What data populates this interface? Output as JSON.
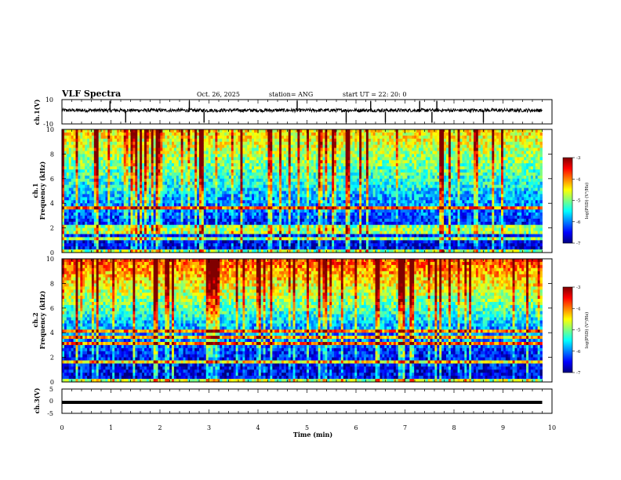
{
  "header": {
    "title": "VLF Spectra",
    "date": "Oct. 26, 2025",
    "station": "station= ANG",
    "start_ut": "start UT =   22: 20: 0"
  },
  "chart_data": [
    {
      "type": "line",
      "panel": "ch1-waveform",
      "ylabel": "ch.1(V)",
      "ylim": [
        -10,
        10
      ],
      "ytick_labels": [
        "10",
        "-10"
      ],
      "baseline": 0,
      "description_spikes_min": [
        0.98,
        1.3,
        2.6,
        2.9,
        4.8,
        5.8,
        6.3,
        6.6,
        7.3,
        7.55,
        7.65,
        8.6
      ],
      "xlim": [
        0,
        10
      ]
    },
    {
      "type": "heatmap",
      "panel": "ch1-spectrogram",
      "ylabel": "ch.1",
      "ylabel2": "Frequency (kHz)",
      "ylim": [
        0,
        10
      ],
      "ytick_labels": [
        "0",
        "2",
        "4",
        "6",
        "8",
        "10"
      ],
      "xlim": [
        0,
        10
      ],
      "data_end_min": 9.8,
      "colorbar": {
        "range": [
          -7,
          -3
        ],
        "tick_labels": [
          "-3",
          "-4",
          "-5",
          "-6",
          "-7"
        ],
        "label": "log(PSD) (V²/Hz)"
      }
    },
    {
      "type": "heatmap",
      "panel": "ch2-spectrogram",
      "ylabel": "ch.2",
      "ylabel2": "Frequency (kHz)",
      "ylim": [
        0,
        10
      ],
      "ytick_labels": [
        "0",
        "2",
        "4",
        "6",
        "8",
        "10"
      ],
      "xlim": [
        0,
        10
      ],
      "data_end_min": 9.8,
      "colorbar": {
        "range": [
          -7,
          -3
        ],
        "tick_labels": [
          "-3",
          "-4",
          "-5",
          "-6",
          "-7"
        ],
        "label": "log(PSD) (V²/Hz)"
      }
    },
    {
      "type": "line",
      "panel": "ch3-waveform",
      "ylabel": "ch.3(V)",
      "ylim": [
        -5,
        5
      ],
      "ytick_labels": [
        "5",
        "0",
        "-5"
      ],
      "baseline": -0.5,
      "xlim": [
        0,
        10
      ]
    }
  ],
  "x_axis": {
    "label": "Time (min)",
    "tick_labels": [
      "0",
      "1",
      "2",
      "3",
      "4",
      "5",
      "6",
      "7",
      "8",
      "9",
      "10"
    ]
  },
  "colors": {
    "jet": [
      "#00007f",
      "#0000ff",
      "#007fff",
      "#00ffff",
      "#7fff7f",
      "#ffff00",
      "#ff7f00",
      "#ff0000",
      "#7f0000"
    ]
  }
}
